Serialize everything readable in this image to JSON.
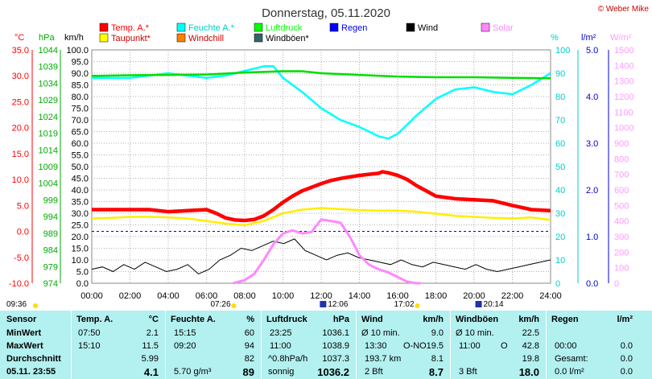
{
  "page": {
    "title": "Donnerstag, 05.11.2020",
    "copyright": "© Weber Mike"
  },
  "sun_times": {
    "sunrise": "07:26",
    "sunset": "17:02",
    "moonrise": "12:06",
    "moonset": "20:14",
    "day_start": "09:36"
  },
  "chart_data": {
    "type": "line",
    "title": "Donnerstag, 05.11.2020",
    "x_ticks": [
      "00:00",
      "02:00",
      "04:00",
      "06:00",
      "08:00",
      "10:00",
      "12:00",
      "14:00",
      "16:00",
      "18:00",
      "20:00",
      "22:00",
      "24:00"
    ],
    "xlim": [
      0,
      24
    ],
    "axes": {
      "temp": {
        "unit": "°C",
        "ticks": [
          "35.0",
          "30.0",
          "25.0",
          "20.0",
          "15.0",
          "10.0",
          "5.0",
          "0.0",
          "-5.0",
          "-10.0"
        ],
        "range": [
          -10,
          35
        ],
        "color": "#ff0000"
      },
      "pressure": {
        "unit": "hPa",
        "ticks": [
          "1044",
          "1039",
          "1034",
          "1029",
          "1024",
          "1019",
          "1014",
          "1009",
          "1004",
          "999",
          "994",
          "989",
          "984",
          "979",
          "974"
        ],
        "range": [
          974,
          1044
        ],
        "color": "#00aa00"
      },
      "wind": {
        "unit": "km/h",
        "ticks": [
          "100.0",
          "95.0",
          "90.0",
          "85.0",
          "80.0",
          "75.0",
          "70.0",
          "65.0",
          "60.0",
          "55.0",
          "50.0",
          "45.0",
          "40.0",
          "35.0",
          "30.0",
          "25.0",
          "20.0",
          "15.0",
          "10.0",
          "5.0",
          "0.0"
        ],
        "range": [
          0,
          100
        ],
        "color": "#000000"
      },
      "humidity": {
        "unit": "%",
        "ticks": [
          "100",
          "90",
          "80",
          "70",
          "60",
          "50",
          "40",
          "30",
          "20",
          "10",
          "0"
        ],
        "range": [
          0,
          100
        ],
        "color": "#00cccc"
      },
      "rain": {
        "unit": "l/m²",
        "ticks": [
          "5.0",
          "4.0",
          "3.0",
          "2.0",
          "1.0",
          "0.0"
        ],
        "range": [
          0,
          5
        ],
        "color": "#0000cc"
      },
      "solar": {
        "unit": "W/m²",
        "ticks": [
          "1500",
          "1400",
          "1300",
          "1200",
          "1100",
          "1000",
          "900",
          "800",
          "700",
          "600",
          "500",
          "400",
          "300",
          "200",
          "100",
          "0"
        ],
        "range": [
          0,
          1500
        ],
        "color": "#ff99ff"
      }
    },
    "legend": [
      {
        "name": "Temp. A.*",
        "color": "#ff0000"
      },
      {
        "name": "Feuchte A.*",
        "color": "#00ffff"
      },
      {
        "name": "Luftdruck",
        "color": "#00ff00"
      },
      {
        "name": "Regen",
        "color": "#0000ff"
      },
      {
        "name": "Wind",
        "color": "#000000"
      },
      {
        "name": "Solar",
        "color": "#ff88ff"
      },
      {
        "name": "Taupunkt*",
        "color": "#ffff00"
      },
      {
        "name": "Windchill",
        "color": "#ff8000"
      },
      {
        "name": "Windböen*",
        "color": "#336666"
      }
    ],
    "series": [
      {
        "name": "Temp. A.*",
        "axis": "temp",
        "x": [
          0,
          1,
          2,
          3,
          4,
          5,
          6,
          6.5,
          7,
          7.5,
          8,
          8.5,
          9,
          9.5,
          10,
          10.5,
          11,
          11.5,
          12,
          12.5,
          13,
          13.5,
          14,
          14.5,
          15,
          15.2,
          15.5,
          16,
          16.5,
          17,
          17.5,
          18,
          19,
          20,
          21,
          22,
          23,
          24
        ],
        "y": [
          4.2,
          4.2,
          4.2,
          4.2,
          3.8,
          4,
          4.2,
          3.5,
          2.6,
          2.2,
          2.1,
          2.3,
          3,
          4.2,
          5.6,
          6.8,
          7.8,
          8.5,
          9.2,
          9.8,
          10.2,
          10.5,
          10.8,
          11,
          11.2,
          11.5,
          11.3,
          10.8,
          10,
          8.8,
          7.8,
          6.8,
          6.3,
          6.1,
          5.9,
          5,
          4.2,
          4
        ]
      },
      {
        "name": "Taupunkt*",
        "axis": "temp",
        "x": [
          0,
          1,
          2,
          3,
          4,
          5,
          6,
          7,
          8,
          9,
          10,
          11,
          12,
          13,
          14,
          15,
          16,
          17,
          18,
          19,
          20,
          21,
          22,
          23,
          24
        ],
        "y": [
          2.5,
          2.6,
          2.8,
          2.8,
          2.7,
          2.5,
          2,
          1.5,
          1.2,
          2,
          3.5,
          4.2,
          4.5,
          4.3,
          4.1,
          4,
          4,
          3.8,
          3.4,
          3,
          2.8,
          2.6,
          2.5,
          2.7,
          2.2
        ]
      },
      {
        "name": "Feuchte A.*",
        "axis": "humidity",
        "x": [
          0,
          1,
          2,
          3,
          4,
          5,
          6,
          7,
          8,
          9,
          9.5,
          10,
          11,
          12,
          13,
          14,
          15,
          15.5,
          16,
          17,
          18,
          19,
          20,
          21,
          22,
          23,
          24
        ],
        "y": [
          88,
          88,
          88,
          89,
          90,
          89,
          88,
          89,
          91,
          93,
          93,
          88,
          82,
          75,
          70,
          67,
          63,
          62,
          64,
          72,
          79,
          83,
          84,
          82,
          81,
          85,
          90
        ]
      },
      {
        "name": "Luftdruck",
        "axis": "pressure",
        "x": [
          0,
          2,
          4,
          6,
          8,
          10,
          11,
          12,
          14,
          16,
          18,
          20,
          22,
          24
        ],
        "y": [
          1036.2,
          1036.4,
          1036.5,
          1036.6,
          1037.2,
          1037.6,
          1037.6,
          1037,
          1036.5,
          1036,
          1035.8,
          1035.8,
          1035.6,
          1035.5
        ]
      },
      {
        "name": "Solar",
        "axis": "solar",
        "x": [
          7.4,
          8,
          8.5,
          9,
          9.5,
          10,
          10.5,
          11,
          11.5,
          12,
          12.5,
          13,
          13.5,
          14,
          14.5,
          15,
          15.5,
          16,
          16.5,
          17,
          17.2
        ],
        "y": [
          0,
          20,
          60,
          150,
          250,
          320,
          340,
          320,
          330,
          410,
          400,
          390,
          300,
          180,
          120,
          90,
          70,
          40,
          10,
          0,
          0
        ]
      }
    ],
    "wind_mean_kmh": [
      6,
      7,
      5,
      8,
      6,
      9,
      7,
      5,
      6,
      8,
      4,
      6,
      10,
      12,
      15,
      14,
      16,
      18,
      17,
      19,
      14,
      12,
      10,
      12,
      13,
      11,
      10,
      9,
      8,
      10,
      8,
      7,
      9,
      8,
      7,
      6,
      8,
      6,
      5,
      6,
      7,
      8,
      9,
      10
    ],
    "gusts_kmh_peak": 22.5,
    "rain_mm": 0.0
  },
  "stats": {
    "sensor": {
      "header": "Sensor",
      "rows": [
        "MinWert",
        "MaxWert",
        "Durchschnitt",
        "05.11. 23:55"
      ]
    },
    "temp": {
      "header": "Temp. A.",
      "unit": "°C",
      "rows": [
        [
          "07:50",
          "2.1"
        ],
        [
          "15:10",
          "11.5"
        ],
        [
          "",
          "5.99"
        ],
        [
          "",
          "4.1"
        ]
      ]
    },
    "humidity": {
      "header": "Feuchte A.",
      "unit": "%",
      "rows": [
        [
          "15:15",
          "60"
        ],
        [
          "09:20",
          "94"
        ],
        [
          "",
          "82"
        ],
        [
          "5.70 g/m³",
          "89"
        ]
      ]
    },
    "pressure": {
      "header": "Luftdruck",
      "unit": "hPa",
      "rows": [
        [
          "23:25",
          "1036.1"
        ],
        [
          "11:00",
          "1038.9"
        ],
        [
          "^0.8hPa/h",
          "1037.3"
        ],
        [
          "sonnig",
          "1036.2"
        ]
      ]
    },
    "wind": {
      "header": "Wind",
      "unit": "km/h",
      "rows": [
        [
          "Ø 10 min.",
          "",
          "9.0"
        ],
        [
          "13:30",
          "O-NO",
          "19.5"
        ],
        [
          "193.7 km",
          "",
          "8.1"
        ],
        [
          "2 Bft",
          "",
          "8.7"
        ]
      ]
    },
    "gust": {
      "header": "Windböen",
      "unit": "km/h",
      "rows": [
        [
          "Ø 10 min.",
          "",
          "22.5"
        ],
        [
          "11:00",
          "O",
          "42.8"
        ],
        [
          "",
          "",
          "19.8"
        ],
        [
          "3 Bft",
          "",
          "18.0"
        ]
      ]
    },
    "rain": {
      "header": "Regen",
      "unit": "l/m²",
      "rows": [
        [
          "",
          ""
        ],
        [
          "00:00",
          "0.0"
        ],
        [
          "Gesamt:",
          "0.0"
        ],
        [
          "0.0 l/m²",
          "0.0"
        ]
      ]
    }
  }
}
